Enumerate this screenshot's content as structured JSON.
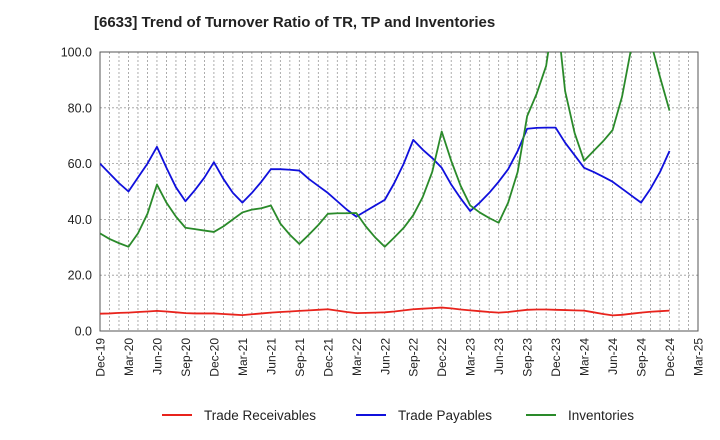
{
  "chart_data": {
    "type": "line",
    "title": "[6633]  Trend of Turnover Ratio of TR, TP and Inventories",
    "xlabel": "",
    "ylabel": "",
    "ylim": [
      0,
      100
    ],
    "yticks": [
      "0.0",
      "20.0",
      "40.0",
      "60.0",
      "80.0",
      "100.0"
    ],
    "grid": true,
    "legend_position": "bottom",
    "x_tick_labels": [
      "Dec-19",
      "Mar-20",
      "Jun-20",
      "Sep-20",
      "Dec-20",
      "Mar-21",
      "Jun-21",
      "Sep-21",
      "Dec-21",
      "Mar-22",
      "Jun-22",
      "Sep-22",
      "Dec-22",
      "Mar-23",
      "Jun-23",
      "Sep-23",
      "Dec-23",
      "Mar-24",
      "Jun-24",
      "Sep-24",
      "Dec-24",
      "Mar-25"
    ],
    "x": [
      "Dec-19",
      "Jan-20",
      "Feb-20",
      "Mar-20",
      "Apr-20",
      "May-20",
      "Jun-20",
      "Jul-20",
      "Aug-20",
      "Sep-20",
      "Oct-20",
      "Nov-20",
      "Dec-20",
      "Jan-21",
      "Feb-21",
      "Mar-21",
      "Apr-21",
      "May-21",
      "Jun-21",
      "Jul-21",
      "Aug-21",
      "Sep-21",
      "Oct-21",
      "Nov-21",
      "Dec-21",
      "Jan-22",
      "Feb-22",
      "Mar-22",
      "Apr-22",
      "May-22",
      "Jun-22",
      "Jul-22",
      "Aug-22",
      "Sep-22",
      "Oct-22",
      "Nov-22",
      "Dec-22",
      "Jan-23",
      "Feb-23",
      "Mar-23",
      "Apr-23",
      "May-23",
      "Jun-23",
      "Jul-23",
      "Aug-23",
      "Sep-23",
      "Oct-23",
      "Nov-23",
      "Dec-23",
      "Jan-24",
      "Feb-24",
      "Mar-24",
      "Apr-24",
      "May-24",
      "Jun-24",
      "Jul-24",
      "Aug-24",
      "Sep-24",
      "Oct-24",
      "Nov-24",
      "Dec-24",
      "Jan-25",
      "Feb-25",
      "Mar-25"
    ],
    "series": [
      {
        "name": "Trade Receivables",
        "color": "#e8231c",
        "values": [
          6.2,
          6.3,
          6.5,
          6.6,
          6.8,
          7.0,
          7.2,
          7.0,
          6.7,
          6.4,
          6.3,
          6.3,
          6.3,
          6.1,
          5.9,
          5.7,
          6.0,
          6.3,
          6.6,
          6.8,
          7.0,
          7.2,
          7.4,
          7.6,
          7.8,
          7.3,
          6.8,
          6.4,
          6.5,
          6.6,
          6.7,
          7.0,
          7.4,
          7.8,
          8.0,
          8.2,
          8.4,
          8.1,
          7.7,
          7.4,
          7.1,
          6.8,
          6.6,
          6.8,
          7.2,
          7.6,
          7.7,
          7.7,
          7.6,
          7.5,
          7.4,
          7.3,
          6.7,
          6.1,
          5.6,
          5.8,
          6.2,
          6.6,
          6.9,
          7.1,
          7.3,
          null,
          null,
          null
        ]
      },
      {
        "name": "Trade Payables",
        "color": "#1010dc",
        "values": [
          60.0,
          56.5,
          53.0,
          50.0,
          55.0,
          60.0,
          66.0,
          58.5,
          51.5,
          46.5,
          50.5,
          55.0,
          60.5,
          54.5,
          49.5,
          46.0,
          49.5,
          53.5,
          58.0,
          58.0,
          57.8,
          57.5,
          54.5,
          52.0,
          49.5,
          46.5,
          43.5,
          41.0,
          43.0,
          45.0,
          47.0,
          53.0,
          60.0,
          68.5,
          65.0,
          62.0,
          58.5,
          52.5,
          47.5,
          43.0,
          46.0,
          49.5,
          53.5,
          58.0,
          64.5,
          72.5,
          72.8,
          72.9,
          72.9,
          67.5,
          63.0,
          58.5,
          57.0,
          55.3,
          53.5,
          51.0,
          48.5,
          46.0,
          51.0,
          57.0,
          64.5,
          null,
          null,
          null
        ]
      },
      {
        "name": "Inventories",
        "color": "#2a8a2a",
        "values": [
          35.0,
          33.0,
          31.5,
          30.2,
          35.0,
          42.0,
          52.5,
          46.0,
          41.0,
          37.0,
          36.5,
          36.0,
          35.5,
          37.5,
          40.0,
          42.5,
          43.5,
          44.0,
          45.0,
          38.5,
          34.5,
          31.2,
          34.5,
          38.0,
          42.0,
          42.2,
          42.2,
          42.3,
          37.5,
          33.5,
          30.2,
          33.5,
          37.0,
          41.5,
          48.0,
          57.0,
          71.5,
          61.0,
          52.0,
          45.0,
          42.5,
          40.5,
          38.8,
          46.0,
          57.0,
          77.0,
          85.0,
          95.0,
          118.0,
          86.0,
          71.0,
          61.0,
          64.5,
          68.0,
          72.0,
          84.0,
          102.0,
          114.0,
          104.0,
          91.0,
          79.0,
          null,
          null,
          null
        ]
      }
    ]
  }
}
